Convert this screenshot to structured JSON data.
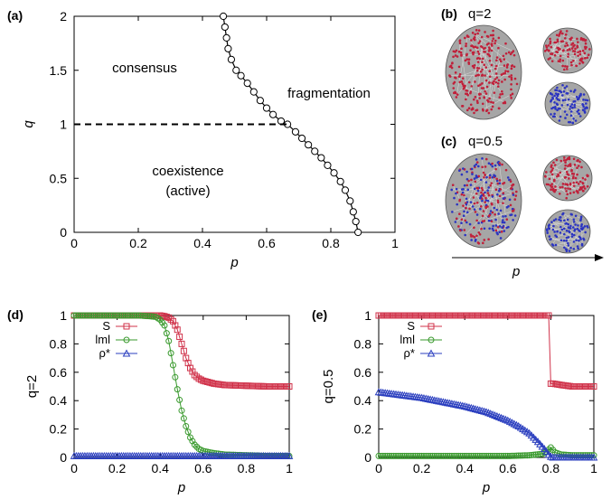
{
  "colors": {
    "S": "#d0324a",
    "m": "#3a9a2e",
    "rho": "#2b3fbf",
    "phase_line": "#000000",
    "red_nodes": "#c0203a",
    "blue_nodes": "#2b34c0",
    "blob": "#a6a6a6"
  },
  "panels": {
    "a": "(a)",
    "b": "(b)",
    "c": "(c)",
    "d": "(d)",
    "e": "(e)"
  },
  "network": {
    "b_label": "q=2",
    "c_label": "q=0.5",
    "axis_label": "p"
  },
  "chart_data": [
    {
      "id": "a",
      "type": "line",
      "xlabel": "p",
      "ylabel": "q",
      "xlim": [
        0,
        1
      ],
      "ylim": [
        0,
        2
      ],
      "xticks": [
        "0",
        "0.2",
        "0.4",
        "0.6",
        "0.8",
        "1"
      ],
      "yticks": [
        "0",
        "0.5",
        "1",
        "1.5",
        "2"
      ],
      "regions": {
        "consensus": "consensus",
        "fragmentation": "fragmentation",
        "coexistence": "coexistence",
        "active": "(active)"
      },
      "series": [
        {
          "x": [
            0.465,
            0.47,
            0.475,
            0.48,
            0.49,
            0.505,
            0.52,
            0.54,
            0.56,
            0.58,
            0.6,
            0.62,
            0.645,
            0.665,
            0.69,
            0.71,
            0.73,
            0.75,
            0.77,
            0.79,
            0.81,
            0.83,
            0.845,
            0.86,
            0.87,
            0.878,
            0.885
          ],
          "y": [
            2.0,
            1.9,
            1.8,
            1.7,
            1.6,
            1.5,
            1.45,
            1.38,
            1.3,
            1.22,
            1.15,
            1.09,
            1.03,
            1.0,
            0.93,
            0.87,
            0.81,
            0.75,
            0.69,
            0.62,
            0.55,
            0.47,
            0.39,
            0.29,
            0.19,
            0.1,
            0.0
          ]
        }
      ],
      "dashed_line": {
        "y": 1,
        "x": [
          0,
          0.665
        ]
      }
    },
    {
      "id": "d",
      "type": "line",
      "xlabel": "p",
      "ylabel": "q=2",
      "xlim": [
        0,
        1
      ],
      "ylim": [
        0,
        1
      ],
      "xticks": [
        "0",
        "0.2",
        "0.4",
        "0.6",
        "0.8",
        "1"
      ],
      "yticks": [
        "0",
        "0.2",
        "0.4",
        "0.6",
        "0.8",
        "1"
      ],
      "legend": [
        "S",
        "lml",
        "ρ*"
      ],
      "series": [
        {
          "name": "S",
          "x": [
            0,
            0.1,
            0.2,
            0.3,
            0.35,
            0.4,
            0.42,
            0.44,
            0.46,
            0.48,
            0.5,
            0.52,
            0.54,
            0.56,
            0.58,
            0.6,
            0.65,
            0.7,
            0.8,
            0.9,
            1.0
          ],
          "values": [
            1,
            1,
            1,
            1,
            1,
            1,
            0.995,
            0.985,
            0.96,
            0.9,
            0.8,
            0.7,
            0.63,
            0.58,
            0.555,
            0.54,
            0.52,
            0.51,
            0.505,
            0.5,
            0.5
          ]
        },
        {
          "name": "lml",
          "x": [
            0,
            0.1,
            0.2,
            0.3,
            0.35,
            0.38,
            0.4,
            0.42,
            0.44,
            0.46,
            0.48,
            0.5,
            0.52,
            0.54,
            0.56,
            0.58,
            0.6,
            0.65,
            0.7,
            0.8,
            0.9,
            1.0
          ],
          "values": [
            1,
            1,
            1,
            1,
            0.995,
            0.99,
            0.97,
            0.93,
            0.82,
            0.65,
            0.48,
            0.33,
            0.22,
            0.14,
            0.09,
            0.06,
            0.045,
            0.03,
            0.02,
            0.015,
            0.01,
            0.01
          ]
        },
        {
          "name": "ρ*",
          "x": [
            0,
            0.2,
            0.4,
            0.6,
            0.8,
            1.0
          ],
          "values": [
            0.01,
            0.01,
            0.01,
            0.01,
            0.01,
            0.01
          ]
        }
      ]
    },
    {
      "id": "e",
      "type": "line",
      "xlabel": "p",
      "ylabel": "q=0.5",
      "xlim": [
        0,
        1
      ],
      "ylim": [
        0,
        1
      ],
      "xticks": [
        "0",
        "0.2",
        "0.4",
        "0.6",
        "0.8",
        "1"
      ],
      "yticks": [
        "0",
        "0.2",
        "0.4",
        "0.6",
        "0.8",
        "1"
      ],
      "legend": [
        "S",
        "lml",
        "ρ*"
      ],
      "series": [
        {
          "name": "S",
          "x": [
            0,
            0.2,
            0.4,
            0.6,
            0.78,
            0.79,
            0.8,
            0.81,
            0.85,
            0.9,
            1.0
          ],
          "values": [
            1,
            1,
            1,
            1,
            1,
            1,
            0.52,
            0.52,
            0.51,
            0.5,
            0.5
          ]
        },
        {
          "name": "lml",
          "x": [
            0,
            0.2,
            0.4,
            0.6,
            0.7,
            0.76,
            0.78,
            0.8,
            0.82,
            0.85,
            0.9,
            1.0
          ],
          "values": [
            0.01,
            0.01,
            0.01,
            0.01,
            0.015,
            0.025,
            0.04,
            0.07,
            0.035,
            0.02,
            0.015,
            0.015
          ]
        },
        {
          "name": "ρ*",
          "x": [
            0,
            0.1,
            0.2,
            0.3,
            0.4,
            0.5,
            0.6,
            0.65,
            0.7,
            0.74,
            0.77,
            0.79,
            0.8,
            0.81,
            0.83,
            0.9,
            1.0
          ],
          "values": [
            0.46,
            0.44,
            0.42,
            0.39,
            0.36,
            0.32,
            0.26,
            0.22,
            0.17,
            0.11,
            0.06,
            0.02,
            0.005,
            0.0,
            0.0,
            0.0,
            0.0
          ]
        }
      ]
    }
  ]
}
